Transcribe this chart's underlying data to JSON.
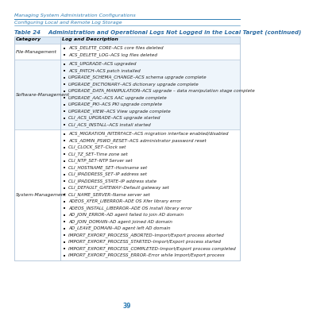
{
  "header_top": "Managing System Administration Configurations",
  "header_sub": "Configuring Local and Remote Log Storage",
  "table_title": "Table 24    Administration and Operational Logs Not Logged in the Local Target (continued)",
  "col_headers": [
    "Category",
    "Log and Description"
  ],
  "rows": [
    {
      "category": "File-Management",
      "entries": [
        "ACS_DELETE_CORE–ACS core files deleted",
        "ACS_DELETE_LOG–ACS log files deleted"
      ]
    },
    {
      "category": "Software-Management",
      "entries": [
        "ACS_UPGRADE–ACS upgraded",
        "ACS_PATCH–ACS patch installed",
        "UPGRADE_SCHEMA_CHANGE–ACS schema upgrade complete",
        "UPGRADE_DICTIONARY–ACS dictionary upgrade complete",
        "UPGRADE_DATA_MANIPULATION–ACS upgrade – data manipulation stage complete",
        "UPGRADE_AAC–ACS AAC upgrade complete",
        "UPGRADE_PKI–ACS PKI upgrade complete",
        "UPGRADE_VIEW–ACS View upgrade complete",
        "CLI_ACS_UPGRADE–ACS upgrade started",
        "CLI_ACS_INSTALL–ACS install started"
      ]
    },
    {
      "category": "System-Management",
      "entries": [
        "ACS_MIGRATION_INTERFACE–ACS migration interface enabled/disabled",
        "ACS_ADMIN_PSWD_RESET–ACS administrator password reset",
        "CLI_CLOCK_SET–Clock set",
        "CLI_TZ_SET–Time zone set",
        "CLI_NTP_SET–NTP Server set",
        "CLI_HOSTNAME_SET–Hostname set",
        "CLI_IPADDRESS_SET–IP address set",
        "CLI_IPADDRESS_STATE–IP address state",
        "CLI_DEFAULT_GATEWAY–Default gateway set",
        "CLI_NAME_SERVER–Name server set",
        "ADEOS_XFER_LIBERROR–ADE OS Xfer library error",
        "ADEOS_INSTALL_LIBERROR–ADE OS install library error",
        "AD_JOIN_ERROR–AD agent failed to join AD domain",
        "AD_JOIN_DOMAIN–AD agent joined AD domain",
        "AD_LEAVE_DOMAIN–AD agent left AD domain",
        "IMPORT_EXPORT_PROCESS_ABORTED–Import/Export process aborted",
        "IMPORT_EXPORT_PROCESS_STARTED–Import/Export process started",
        "IMPORT_EXPORT_PROCESS_COMPLETED–Import/Export process completed",
        "IMPORT_EXPORT_PROCESS_ERROR–Error while Import/Export process"
      ]
    }
  ],
  "page_number": "39",
  "bg_color": "#ffffff",
  "header_color": "#2e7db5",
  "table_title_color": "#2e6da4",
  "col_header_bg": "#dce9f5",
  "col_header_text": "#000000",
  "row_bg_white": "#ffffff",
  "row_bg_light": "#eef5fb",
  "border_color": "#b0c4d8",
  "text_color": "#222222",
  "bullet_color": "#222222",
  "top_line_color": "#2e7db5",
  "font_size": 4.8,
  "title_font_size": 5.0
}
